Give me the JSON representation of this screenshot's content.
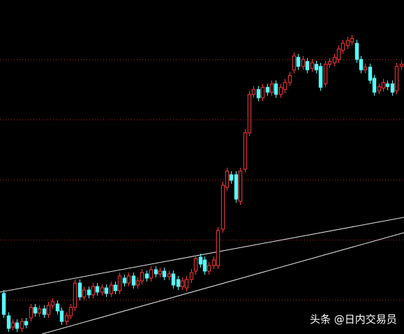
{
  "chart_data": {
    "type": "candlestick",
    "up_color": "#ff3b3b",
    "down_color": "#54fcfc",
    "xlim": [
      -0.8,
      89.7
    ],
    "ylim": [
      0,
      478
    ],
    "grid": true,
    "grid_color": "#b02020",
    "yticks": [
      49,
      135,
      221,
      307,
      393
    ],
    "open": [
      58,
      26,
      10,
      16,
      8,
      18,
      23,
      38,
      30,
      36,
      28,
      41,
      43,
      33,
      18,
      26,
      38,
      73,
      53,
      63,
      56,
      68,
      60,
      66,
      58,
      70,
      62,
      80,
      73,
      83,
      70,
      76,
      86,
      80,
      92,
      86,
      90,
      82,
      86,
      78,
      68,
      66,
      78,
      90,
      110,
      106,
      90,
      98,
      98,
      150,
      210,
      228,
      228,
      190,
      236,
      288,
      343,
      350,
      338,
      353,
      346,
      358,
      343,
      350,
      360,
      378,
      396,
      383,
      390,
      380,
      386,
      383,
      358,
      386,
      388,
      393,
      406,
      413,
      418,
      416,
      393,
      378,
      382,
      366,
      348,
      352,
      358,
      358,
      348,
      383
    ],
    "high": [
      63,
      31,
      21,
      21,
      23,
      23,
      43,
      43,
      41,
      41,
      46,
      51,
      48,
      38,
      31,
      43,
      78,
      78,
      68,
      68,
      73,
      73,
      71,
      71,
      75,
      75,
      88,
      85,
      88,
      88,
      81,
      93,
      91,
      97,
      97,
      95,
      95,
      91,
      91,
      83,
      81,
      83,
      93,
      113,
      115,
      111,
      103,
      111,
      153,
      218,
      238,
      233,
      233,
      238,
      293,
      348,
      355,
      355,
      358,
      358,
      363,
      363,
      358,
      365,
      375,
      403,
      401,
      398,
      395,
      393,
      391,
      388,
      391,
      395,
      401,
      413,
      421,
      425,
      428,
      421,
      398,
      387,
      387,
      371,
      359,
      365,
      363,
      363,
      388,
      391
    ],
    "low": [
      23,
      3,
      5,
      3,
      3,
      8,
      18,
      25,
      25,
      23,
      23,
      36,
      28,
      13,
      13,
      21,
      33,
      48,
      48,
      51,
      51,
      55,
      55,
      53,
      53,
      57,
      57,
      68,
      68,
      65,
      65,
      71,
      75,
      75,
      81,
      81,
      77,
      77,
      65,
      63,
      63,
      61,
      73,
      85,
      95,
      85,
      85,
      93,
      93,
      145,
      205,
      215,
      188,
      185,
      231,
      283,
      338,
      333,
      333,
      341,
      341,
      338,
      338,
      345,
      355,
      373,
      378,
      378,
      373,
      375,
      373,
      348,
      353,
      381,
      383,
      388,
      401,
      408,
      413,
      388,
      373,
      373,
      358,
      341,
      343,
      347,
      349,
      341,
      343,
      378
    ],
    "close": [
      28,
      8,
      16,
      8,
      18,
      13,
      38,
      30,
      36,
      28,
      41,
      46,
      33,
      18,
      26,
      38,
      73,
      53,
      63,
      56,
      68,
      60,
      66,
      58,
      70,
      62,
      83,
      73,
      83,
      70,
      76,
      88,
      80,
      92,
      86,
      90,
      82,
      86,
      70,
      68,
      76,
      78,
      88,
      108,
      100,
      90,
      98,
      106,
      148,
      213,
      233,
      220,
      193,
      233,
      288,
      343,
      350,
      338,
      353,
      346,
      358,
      343,
      353,
      360,
      370,
      398,
      383,
      393,
      378,
      388,
      378,
      353,
      386,
      390,
      396,
      408,
      416,
      420,
      423,
      393,
      378,
      382,
      363,
      346,
      354,
      360,
      354,
      346,
      383,
      386
    ],
    "trendlines": [
      {
        "x": [
          -0.8,
          89.7
        ],
        "values": [
          60,
          167
        ]
      },
      {
        "x": [
          8.6,
          89.7
        ],
        "values": [
          0,
          145
        ]
      }
    ]
  },
  "watermark": "头条 @日内交易员"
}
